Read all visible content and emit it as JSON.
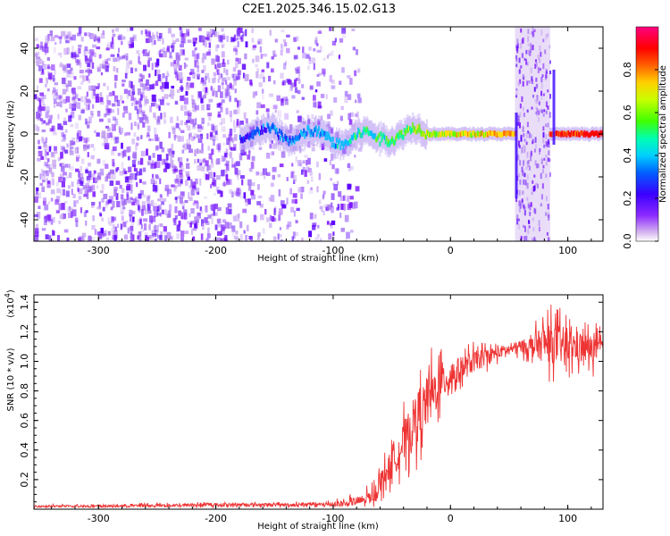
{
  "title": "C2E1.2025.346.15.02.G13",
  "chart_data": [
    {
      "type": "heatmap",
      "xlabel": "Height of straight line (km)",
      "ylabel": "Frequency (Hz)",
      "xlim": [
        -355,
        130
      ],
      "ylim": [
        -50,
        50
      ],
      "x_ticks": [
        -300,
        -200,
        -100,
        0,
        100
      ],
      "y_ticks": [
        -40,
        -20,
        0,
        20,
        40
      ],
      "colorbar": {
        "label": "Normalized spectral amplitude",
        "range": [
          0.0,
          1.0
        ],
        "ticks": [
          0.0,
          0.2,
          0.4,
          0.6,
          0.8
        ],
        "colormap": [
          "#ffffff",
          "#a060e0",
          "#5000ff",
          "#0000ff",
          "#00c0ff",
          "#00ff80",
          "#80ff00",
          "#ffff00",
          "#ff8000",
          "#ff0000",
          "#ff00a0"
        ]
      },
      "features": {
        "noise_region_x": [
          -355,
          -100
        ],
        "signal_band_center_hz": 0,
        "signal_start_x": -180,
        "noise_strips_x": [
          [
            55,
            85
          ]
        ],
        "gap_x": [
          -95,
          55
        ]
      }
    },
    {
      "type": "line",
      "xlabel": "Height of straight line (km)",
      "ylabel": "SNR (10 * v/v)",
      "exponent_label": "(x10",
      "exponent_power": "4",
      "exponent_close": ")",
      "xlim": [
        -355,
        130
      ],
      "ylim": [
        0.0,
        1.45
      ],
      "x_ticks": [
        -300,
        -200,
        -100,
        0,
        100
      ],
      "y_ticks": [
        0.2,
        0.4,
        0.6,
        0.8,
        1.0,
        1.2,
        1.4
      ],
      "line_color": "#ee3333",
      "series": [
        {
          "x": [
            -355,
            -300,
            -250,
            -200,
            -150,
            -110,
            -90,
            -75,
            -65,
            -60,
            -55,
            -50,
            -45,
            -40,
            -35,
            -30,
            -25,
            -20,
            -15,
            -10,
            -5,
            0,
            10,
            20,
            30,
            40,
            50,
            60,
            70,
            80,
            90,
            100,
            110,
            120,
            130
          ],
          "y": [
            0.02,
            0.02,
            0.025,
            0.03,
            0.03,
            0.03,
            0.04,
            0.06,
            0.1,
            0.18,
            0.25,
            0.3,
            0.38,
            0.45,
            0.52,
            0.6,
            0.66,
            0.72,
            0.78,
            0.84,
            0.88,
            0.9,
            0.95,
            1.0,
            1.03,
            1.06,
            1.08,
            1.1,
            1.1,
            1.12,
            1.12,
            1.1,
            1.1,
            1.08,
            1.1
          ],
          "noise": [
            0.01,
            0.01,
            0.015,
            0.015,
            0.015,
            0.02,
            0.03,
            0.05,
            0.08,
            0.1,
            0.12,
            0.14,
            0.16,
            0.2,
            0.22,
            0.25,
            0.24,
            0.25,
            0.24,
            0.2,
            0.18,
            0.15,
            0.12,
            0.1,
            0.08,
            0.06,
            0.05,
            0.06,
            0.1,
            0.18,
            0.2,
            0.17,
            0.15,
            0.14,
            0.1
          ]
        }
      ]
    }
  ]
}
